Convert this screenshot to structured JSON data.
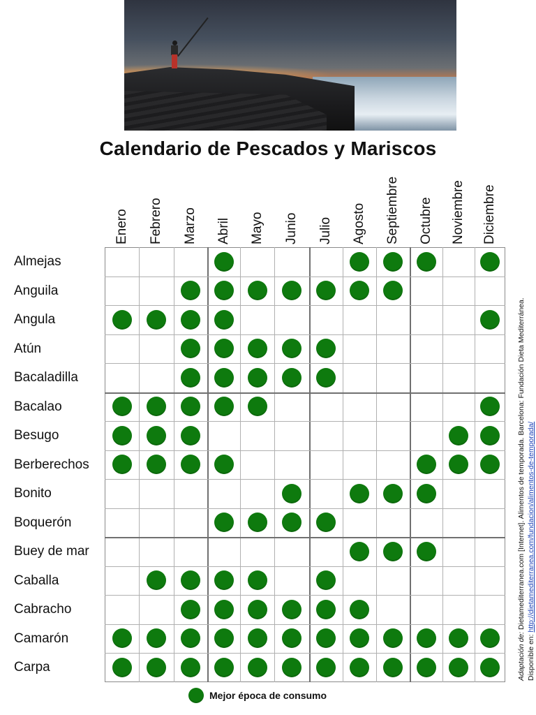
{
  "title": "Calendario de Pescados y Mariscos",
  "months": [
    "Enero",
    "Febrero",
    "Marzo",
    "Abril",
    "Mayo",
    "Junio",
    "Julio",
    "Agosto",
    "Septiembre",
    "Octubre",
    "Noviembre",
    "Diciembre"
  ],
  "fish": [
    {
      "name": "Almejas",
      "months": [
        0,
        0,
        0,
        1,
        0,
        0,
        0,
        1,
        1,
        1,
        0,
        1
      ]
    },
    {
      "name": "Anguila",
      "months": [
        0,
        0,
        1,
        1,
        1,
        1,
        1,
        1,
        1,
        0,
        0,
        0
      ]
    },
    {
      "name": "Angula",
      "months": [
        1,
        1,
        1,
        1,
        0,
        0,
        0,
        0,
        0,
        0,
        0,
        1
      ]
    },
    {
      "name": "Atún",
      "months": [
        0,
        0,
        1,
        1,
        1,
        1,
        1,
        0,
        0,
        0,
        0,
        0
      ]
    },
    {
      "name": "Bacaladilla",
      "months": [
        0,
        0,
        1,
        1,
        1,
        1,
        1,
        0,
        0,
        0,
        0,
        0
      ]
    },
    {
      "name": "Bacalao",
      "months": [
        1,
        1,
        1,
        1,
        1,
        0,
        0,
        0,
        0,
        0,
        0,
        1
      ]
    },
    {
      "name": "Besugo",
      "months": [
        1,
        1,
        1,
        0,
        0,
        0,
        0,
        0,
        0,
        0,
        1,
        1
      ]
    },
    {
      "name": "Berberechos",
      "months": [
        1,
        1,
        1,
        1,
        0,
        0,
        0,
        0,
        0,
        1,
        1,
        1
      ]
    },
    {
      "name": "Bonito",
      "months": [
        0,
        0,
        0,
        0,
        0,
        1,
        0,
        1,
        1,
        1,
        0,
        0
      ]
    },
    {
      "name": "Boquerón",
      "months": [
        0,
        0,
        0,
        1,
        1,
        1,
        1,
        0,
        0,
        0,
        0,
        0
      ]
    },
    {
      "name": "Buey de mar",
      "months": [
        0,
        0,
        0,
        0,
        0,
        0,
        0,
        1,
        1,
        1,
        0,
        0
      ]
    },
    {
      "name": "Caballa",
      "months": [
        0,
        1,
        1,
        1,
        1,
        0,
        1,
        0,
        0,
        0,
        0,
        0
      ]
    },
    {
      "name": "Cabracho",
      "months": [
        0,
        0,
        1,
        1,
        1,
        1,
        1,
        1,
        0,
        0,
        0,
        0
      ]
    },
    {
      "name": "Camarón",
      "months": [
        1,
        1,
        1,
        1,
        1,
        1,
        1,
        1,
        1,
        1,
        1,
        1
      ]
    },
    {
      "name": "Carpa",
      "months": [
        1,
        1,
        1,
        1,
        1,
        1,
        1,
        1,
        1,
        1,
        1,
        1
      ]
    }
  ],
  "legend": {
    "label": "Mejor época de consumo",
    "color": "#0e7a0e"
  },
  "source": {
    "prefix": "Adaptación de:",
    "text": " Dietamediterranea.com [Internet]. Alimentos de temporada. Barcelona: Fundación Dieta Mediterránea.",
    "available": "Disponible en: ",
    "link": "http://dietamediterranea.com/fundacion/alimentos-de-temporada/"
  }
}
